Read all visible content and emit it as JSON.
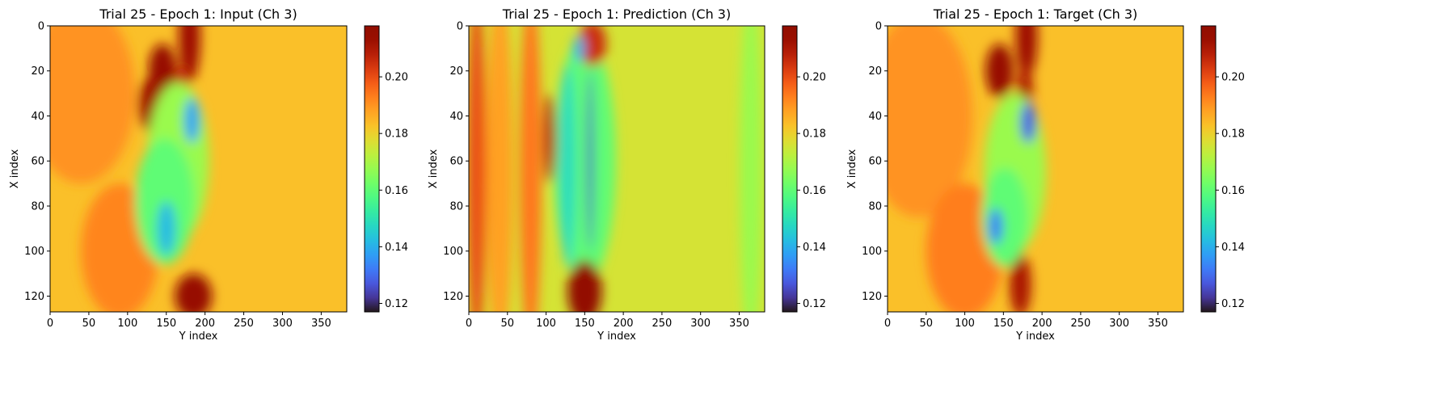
{
  "chart_data": [
    {
      "type": "heatmap",
      "title": "Trial 25 - Epoch 1: Input (Ch 3)",
      "xlabel": "Y index",
      "ylabel": "X index",
      "xlim": [
        0,
        383
      ],
      "ylim": [
        127,
        0
      ],
      "xticks": [
        0,
        50,
        100,
        150,
        200,
        250,
        300,
        350
      ],
      "yticks": [
        0,
        20,
        40,
        60,
        80,
        100,
        120
      ],
      "colormap": "turbo",
      "colorbar": {
        "range": [
          0.117,
          0.218
        ],
        "ticks": [
          "0.12",
          "0.14",
          "0.16",
          "0.18",
          "0.20"
        ]
      },
      "background_value": 0.183,
      "features": [
        {
          "x": 40,
          "y": 30,
          "rx": 70,
          "ry": 40,
          "v": 0.19
        },
        {
          "x": 90,
          "y": 100,
          "rx": 50,
          "ry": 30,
          "v": 0.192
        },
        {
          "x": 180,
          "y": 5,
          "rx": 14,
          "ry": 20,
          "v": 0.212
        },
        {
          "x": 145,
          "y": 20,
          "rx": 18,
          "ry": 12,
          "v": 0.214
        },
        {
          "x": 130,
          "y": 35,
          "rx": 16,
          "ry": 12,
          "v": 0.212
        },
        {
          "x": 170,
          "y": 28,
          "rx": 10,
          "ry": 10,
          "v": 0.205
        },
        {
          "x": 185,
          "y": 120,
          "rx": 24,
          "ry": 10,
          "v": 0.214
        },
        {
          "x": 165,
          "y": 60,
          "rx": 40,
          "ry": 35,
          "v": 0.168
        },
        {
          "x": 148,
          "y": 78,
          "rx": 38,
          "ry": 28,
          "v": 0.16
        },
        {
          "x": 183,
          "y": 42,
          "rx": 10,
          "ry": 10,
          "v": 0.138
        },
        {
          "x": 150,
          "y": 90,
          "rx": 12,
          "ry": 12,
          "v": 0.142
        }
      ]
    },
    {
      "type": "heatmap",
      "title": "Trial 25 - Epoch 1: Prediction (Ch 3)",
      "xlabel": "Y index",
      "ylabel": "X index",
      "xlim": [
        0,
        383
      ],
      "ylim": [
        127,
        0
      ],
      "xticks": [
        0,
        50,
        100,
        150,
        200,
        250,
        300,
        350
      ],
      "yticks": [
        0,
        20,
        40,
        60,
        80,
        100,
        120
      ],
      "colormap": "turbo",
      "colorbar": {
        "range": [
          0.117,
          0.218
        ],
        "ticks": [
          "0.12",
          "0.14",
          "0.16",
          "0.18",
          "0.20"
        ]
      },
      "background_value": 0.176,
      "features": [
        {
          "x": 10,
          "y": 64,
          "rx": 12,
          "ry": 80,
          "v": 0.2
        },
        {
          "x": 40,
          "y": 64,
          "rx": 18,
          "ry": 80,
          "v": 0.188
        },
        {
          "x": 80,
          "y": 64,
          "rx": 14,
          "ry": 80,
          "v": 0.194
        },
        {
          "x": 150,
          "y": 60,
          "rx": 40,
          "ry": 55,
          "v": 0.16
        },
        {
          "x": 128,
          "y": 62,
          "rx": 10,
          "ry": 45,
          "v": 0.148
        },
        {
          "x": 105,
          "y": 50,
          "rx": 8,
          "ry": 20,
          "v": 0.208
        },
        {
          "x": 150,
          "y": 118,
          "rx": 22,
          "ry": 14,
          "v": 0.215
        },
        {
          "x": 160,
          "y": 8,
          "rx": 18,
          "ry": 10,
          "v": 0.205
        },
        {
          "x": 143,
          "y": 10,
          "rx": 7,
          "ry": 6,
          "v": 0.14
        },
        {
          "x": 157,
          "y": 60,
          "rx": 4,
          "ry": 40,
          "v": 0.125
        },
        {
          "x": 365,
          "y": 64,
          "rx": 14,
          "ry": 80,
          "v": 0.168
        }
      ]
    },
    {
      "type": "heatmap",
      "title": "Trial 25 - Epoch 1: Target (Ch 3)",
      "xlabel": "Y index",
      "ylabel": "X index",
      "xlim": [
        0,
        383
      ],
      "ylim": [
        127,
        0
      ],
      "xticks": [
        0,
        50,
        100,
        150,
        200,
        250,
        300,
        350
      ],
      "yticks": [
        0,
        20,
        40,
        60,
        80,
        100,
        120
      ],
      "colormap": "turbo",
      "colorbar": {
        "range": [
          0.117,
          0.218
        ],
        "ticks": [
          "0.12",
          "0.14",
          "0.16",
          "0.18",
          "0.20"
        ]
      },
      "background_value": 0.183,
      "features": [
        {
          "x": 40,
          "y": 40,
          "rx": 70,
          "ry": 45,
          "v": 0.19
        },
        {
          "x": 100,
          "y": 100,
          "rx": 50,
          "ry": 30,
          "v": 0.193
        },
        {
          "x": 180,
          "y": 5,
          "rx": 14,
          "ry": 18,
          "v": 0.212
        },
        {
          "x": 145,
          "y": 20,
          "rx": 18,
          "ry": 12,
          "v": 0.214
        },
        {
          "x": 178,
          "y": 28,
          "rx": 10,
          "ry": 10,
          "v": 0.21
        },
        {
          "x": 172,
          "y": 115,
          "rx": 14,
          "ry": 14,
          "v": 0.21
        },
        {
          "x": 165,
          "y": 65,
          "rx": 40,
          "ry": 35,
          "v": 0.168
        },
        {
          "x": 152,
          "y": 85,
          "rx": 30,
          "ry": 22,
          "v": 0.16
        },
        {
          "x": 182,
          "y": 43,
          "rx": 10,
          "ry": 9,
          "v": 0.128
        },
        {
          "x": 140,
          "y": 89,
          "rx": 9,
          "ry": 8,
          "v": 0.132
        }
      ]
    }
  ]
}
